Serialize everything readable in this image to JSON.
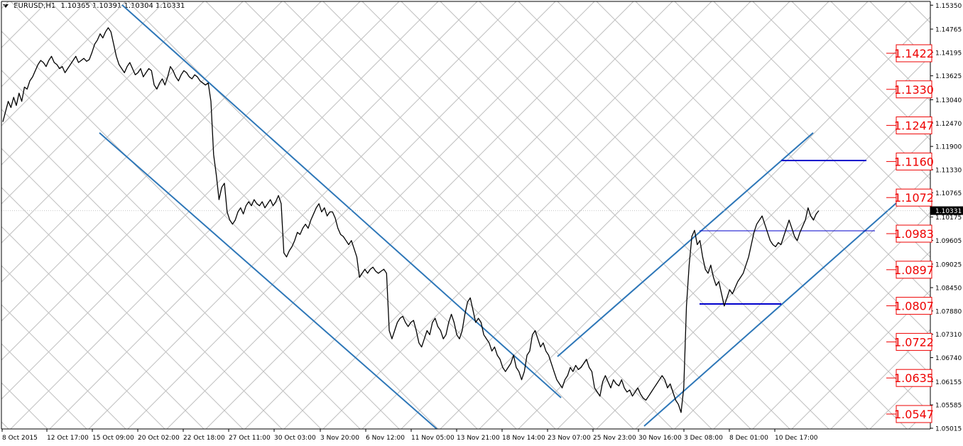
{
  "header": {
    "symbol": "EURUSD,H1",
    "ohlc": "1.10365 1.10391 1.10304 1.10331"
  },
  "colors": {
    "background": "#ffffff",
    "price": "#000000",
    "channel": "#2e77b8",
    "level_line": "#0000cc",
    "level_label_text": "#ee0000",
    "level_label_border": "#ee0000",
    "fan_grid": "#c0c0c0",
    "axis": "#000000"
  },
  "chart_data": {
    "type": "line",
    "title": "EURUSD,H1",
    "xlabel": "",
    "ylabel": "",
    "ylim": [
      1.05015,
      1.15355
    ],
    "grid": false,
    "y_ticks": [
      "1.15350",
      "1.14765",
      "1.14195",
      "1.13625",
      "1.13040",
      "1.12470",
      "1.11900",
      "1.11330",
      "1.10765",
      "1.10175",
      "1.09605",
      "1.09025",
      "1.08450",
      "1.07880",
      "1.07310",
      "1.06740",
      "1.06155",
      "1.05585",
      "1.05015"
    ],
    "x_ticks": [
      "8 Oct 2015",
      "12 Oct 17:00",
      "15 Oct 09:00",
      "20 Oct 02:00",
      "22 Oct 18:00",
      "27 Oct 11:00",
      "30 Oct 03:00",
      "3 Nov 20:00",
      "6 Nov 12:00",
      "11 Nov 05:00",
      "13 Nov 21:00",
      "18 Nov 14:00",
      "23 Nov 07:00",
      "25 Nov 23:00",
      "30 Nov 16:00",
      "3 Dec 08:00",
      "8 Dec 01:00",
      "10 Dec 17:00"
    ],
    "current_price": "1.10331",
    "levels": [
      "1.1422",
      "1.1330",
      "1.1247",
      "1.1160",
      "1.1072",
      "1.0983",
      "1.0897",
      "1.0807",
      "1.0722",
      "1.0635",
      "1.0547"
    ],
    "series": [
      {
        "values": [
          1.125,
          1.1275,
          1.13,
          1.1285,
          1.131,
          1.129,
          1.132,
          1.13,
          1.1335,
          1.133,
          1.135,
          1.136,
          1.1375,
          1.139,
          1.14,
          1.1395,
          1.1385,
          1.14,
          1.141,
          1.1395,
          1.139,
          1.138,
          1.1385,
          1.137,
          1.138,
          1.139,
          1.14,
          1.141,
          1.1395,
          1.14,
          1.1405,
          1.1398,
          1.1402,
          1.142,
          1.144,
          1.145,
          1.1465,
          1.1455,
          1.147,
          1.148,
          1.147,
          1.144,
          1.141,
          1.139,
          1.138,
          1.137,
          1.1385,
          1.1395,
          1.138,
          1.1365,
          1.137,
          1.138,
          1.136,
          1.137,
          1.138,
          1.1375,
          1.134,
          1.133,
          1.1345,
          1.1355,
          1.134,
          1.136,
          1.1385,
          1.1375,
          1.136,
          1.135,
          1.1365,
          1.1375,
          1.137,
          1.136,
          1.1355,
          1.1365,
          1.136,
          1.135,
          1.1345,
          1.134,
          1.1345,
          1.13,
          1.117,
          1.112,
          1.106,
          1.109,
          1.11,
          1.103,
          1.101,
          1.1,
          1.101,
          1.103,
          1.104,
          1.1025,
          1.1045,
          1.1055,
          1.1045,
          1.106,
          1.105,
          1.1045,
          1.1055,
          1.104,
          1.105,
          1.106,
          1.1045,
          1.1055,
          1.107,
          1.105,
          1.093,
          1.092,
          1.0935,
          1.0945,
          1.096,
          1.098,
          1.0975,
          1.099,
          1.1,
          1.099,
          1.101,
          1.1025,
          1.104,
          1.105,
          1.103,
          1.104,
          1.102,
          1.103,
          1.103,
          1.1015,
          1.099,
          1.0975,
          1.097,
          1.096,
          1.095,
          1.096,
          1.094,
          1.092,
          1.087,
          1.088,
          1.089,
          1.088,
          1.089,
          1.0895,
          1.0885,
          1.088,
          1.0885,
          1.089,
          1.088,
          1.074,
          1.072,
          1.074,
          1.076,
          1.077,
          1.0775,
          1.076,
          1.075,
          1.076,
          1.0765,
          1.074,
          1.071,
          1.07,
          1.072,
          1.074,
          1.073,
          1.076,
          1.077,
          1.075,
          1.074,
          1.072,
          1.073,
          1.076,
          1.078,
          1.076,
          1.073,
          1.072,
          1.074,
          1.078,
          1.081,
          1.082,
          1.079,
          1.076,
          1.077,
          1.076,
          1.073,
          1.072,
          1.071,
          1.069,
          1.07,
          1.068,
          1.067,
          1.065,
          1.064,
          1.065,
          1.066,
          1.068,
          1.065,
          1.064,
          1.062,
          1.064,
          1.068,
          1.069,
          1.073,
          1.074,
          1.072,
          1.07,
          1.071,
          1.069,
          1.068,
          1.066,
          1.064,
          1.062,
          1.061,
          1.06,
          1.062,
          1.063,
          1.065,
          1.064,
          1.0655,
          1.0645,
          1.065,
          1.066,
          1.067,
          1.065,
          1.064,
          1.06,
          1.059,
          1.058,
          1.0615,
          1.063,
          1.0615,
          1.06,
          1.062,
          1.061,
          1.0605,
          1.062,
          1.06,
          1.059,
          1.0595,
          1.058,
          1.059,
          1.06,
          1.0585,
          1.0575,
          1.057,
          1.058,
          1.059,
          1.06,
          1.061,
          1.062,
          1.063,
          1.062,
          1.06,
          1.061,
          1.059,
          1.057,
          1.056,
          1.054,
          1.06,
          1.08,
          1.09,
          1.097,
          1.0985,
          1.095,
          1.096,
          1.092,
          1.089,
          1.088,
          1.09,
          1.087,
          1.085,
          1.086,
          1.083,
          1.08,
          1.082,
          1.084,
          1.083,
          1.0845,
          1.086,
          1.087,
          1.088,
          1.09,
          1.092,
          1.095,
          1.098,
          1.1,
          1.101,
          1.102,
          1.1,
          1.098,
          1.096,
          1.095,
          1.0945,
          1.0955,
          1.095,
          1.097,
          1.099,
          1.101,
          1.099,
          1.097,
          1.096,
          1.098,
          1.0995,
          1.101,
          1.104,
          1.102,
          1.101,
          1.1025,
          1.1033
        ]
      }
    ]
  }
}
